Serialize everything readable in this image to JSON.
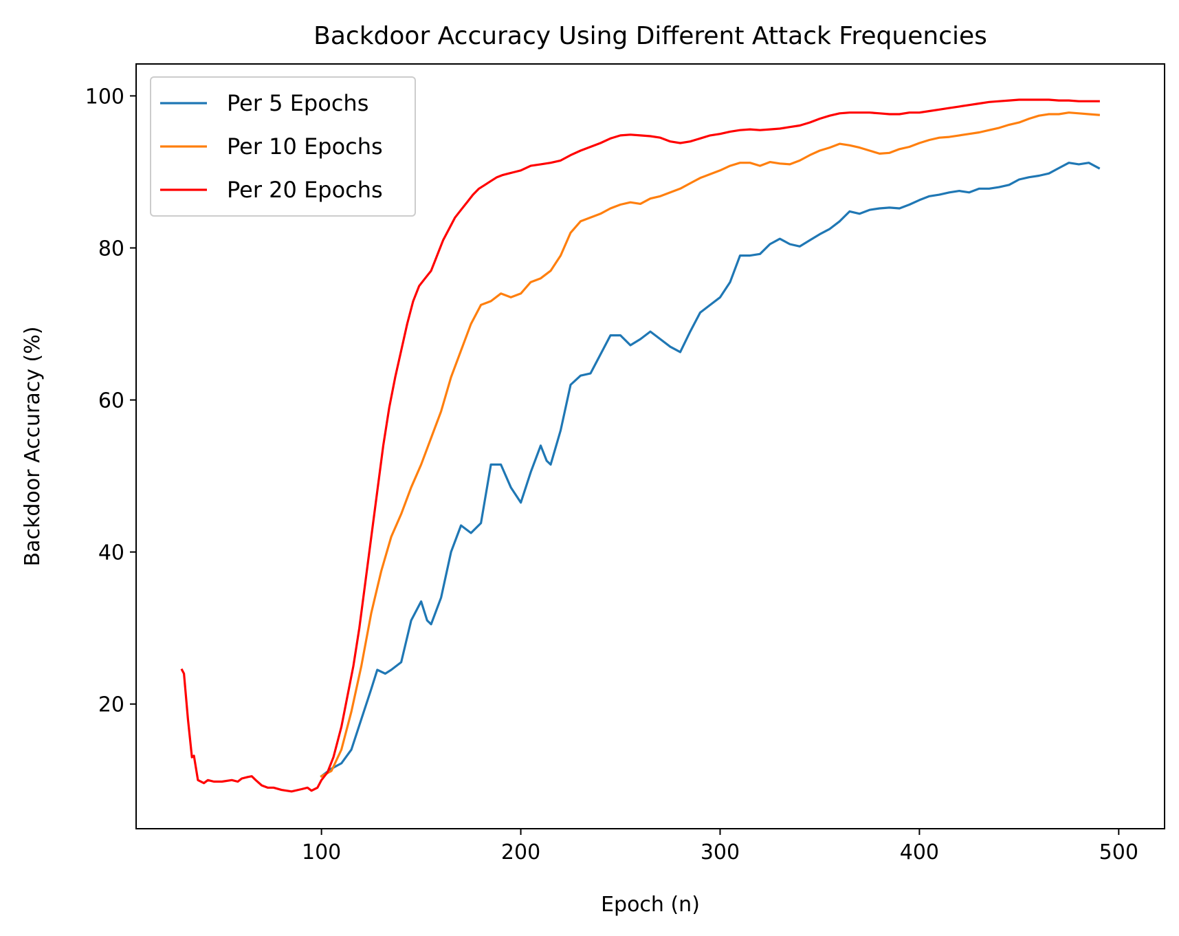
{
  "chart_data": {
    "type": "line",
    "title": "Backdoor Accuracy Using Different Attack Frequencies",
    "xlabel": "Epoch (n)",
    "ylabel": "Backdoor Accuracy (%)",
    "xlim": [
      7,
      523
    ],
    "ylim": [
      3.6,
      104.2
    ],
    "xticks": [
      100,
      200,
      300,
      400,
      500
    ],
    "yticks": [
      20,
      40,
      60,
      80,
      100
    ],
    "grid": false,
    "legend_position": "top-left",
    "series": [
      {
        "name": "Per 5 Epochs",
        "color": "#1f77b4",
        "points": [
          [
            100,
            10.5
          ],
          [
            105,
            11.5
          ],
          [
            110,
            12.2
          ],
          [
            115,
            14
          ],
          [
            120,
            18
          ],
          [
            125,
            22
          ],
          [
            128,
            24.5
          ],
          [
            132,
            24
          ],
          [
            135,
            24.5
          ],
          [
            140,
            25.5
          ],
          [
            145,
            31
          ],
          [
            150,
            33.5
          ],
          [
            153,
            31
          ],
          [
            155,
            30.5
          ],
          [
            160,
            34
          ],
          [
            165,
            40
          ],
          [
            170,
            43.5
          ],
          [
            175,
            42.5
          ],
          [
            180,
            43.8
          ],
          [
            185,
            51.5
          ],
          [
            190,
            51.5
          ],
          [
            195,
            48.5
          ],
          [
            200,
            46.5
          ],
          [
            205,
            50.5
          ],
          [
            210,
            54
          ],
          [
            213,
            52
          ],
          [
            215,
            51.5
          ],
          [
            220,
            56
          ],
          [
            225,
            62
          ],
          [
            230,
            63.2
          ],
          [
            235,
            63.5
          ],
          [
            240,
            66
          ],
          [
            245,
            68.5
          ],
          [
            250,
            68.5
          ],
          [
            255,
            67.2
          ],
          [
            260,
            68
          ],
          [
            265,
            69
          ],
          [
            270,
            68
          ],
          [
            275,
            67
          ],
          [
            280,
            66.3
          ],
          [
            285,
            69
          ],
          [
            290,
            71.5
          ],
          [
            295,
            72.5
          ],
          [
            300,
            73.5
          ],
          [
            305,
            75.5
          ],
          [
            310,
            79
          ],
          [
            315,
            79
          ],
          [
            320,
            79.2
          ],
          [
            325,
            80.5
          ],
          [
            330,
            81.2
          ],
          [
            335,
            80.5
          ],
          [
            340,
            80.2
          ],
          [
            345,
            81
          ],
          [
            350,
            81.8
          ],
          [
            355,
            82.5
          ],
          [
            360,
            83.5
          ],
          [
            365,
            84.8
          ],
          [
            370,
            84.5
          ],
          [
            375,
            85
          ],
          [
            380,
            85.2
          ],
          [
            385,
            85.3
          ],
          [
            390,
            85.2
          ],
          [
            395,
            85.7
          ],
          [
            400,
            86.3
          ],
          [
            405,
            86.8
          ],
          [
            410,
            87
          ],
          [
            415,
            87.3
          ],
          [
            420,
            87.5
          ],
          [
            425,
            87.3
          ],
          [
            430,
            87.8
          ],
          [
            435,
            87.8
          ],
          [
            440,
            88
          ],
          [
            445,
            88.3
          ],
          [
            450,
            89
          ],
          [
            455,
            89.3
          ],
          [
            460,
            89.5
          ],
          [
            465,
            89.8
          ],
          [
            470,
            90.5
          ],
          [
            475,
            91.2
          ],
          [
            480,
            91
          ],
          [
            485,
            91.2
          ],
          [
            490,
            90.5
          ]
        ]
      },
      {
        "name": "Per 10 Epochs",
        "color": "#ff7f0e",
        "points": [
          [
            100,
            10.5
          ],
          [
            105,
            11.2
          ],
          [
            110,
            14
          ],
          [
            115,
            19
          ],
          [
            120,
            25
          ],
          [
            125,
            32
          ],
          [
            130,
            37.5
          ],
          [
            135,
            42
          ],
          [
            140,
            45
          ],
          [
            145,
            48.5
          ],
          [
            150,
            51.5
          ],
          [
            155,
            55
          ],
          [
            160,
            58.5
          ],
          [
            165,
            63
          ],
          [
            170,
            66.5
          ],
          [
            175,
            70
          ],
          [
            180,
            72.5
          ],
          [
            185,
            73
          ],
          [
            190,
            74
          ],
          [
            195,
            73.5
          ],
          [
            200,
            74
          ],
          [
            205,
            75.5
          ],
          [
            210,
            76
          ],
          [
            215,
            77
          ],
          [
            220,
            79
          ],
          [
            225,
            82
          ],
          [
            230,
            83.5
          ],
          [
            235,
            84
          ],
          [
            240,
            84.5
          ],
          [
            245,
            85.2
          ],
          [
            250,
            85.7
          ],
          [
            255,
            86
          ],
          [
            260,
            85.8
          ],
          [
            265,
            86.5
          ],
          [
            270,
            86.8
          ],
          [
            275,
            87.3
          ],
          [
            280,
            87.8
          ],
          [
            285,
            88.5
          ],
          [
            290,
            89.2
          ],
          [
            295,
            89.7
          ],
          [
            300,
            90.2
          ],
          [
            305,
            90.8
          ],
          [
            310,
            91.2
          ],
          [
            315,
            91.2
          ],
          [
            320,
            90.8
          ],
          [
            325,
            91.3
          ],
          [
            330,
            91.1
          ],
          [
            335,
            91
          ],
          [
            340,
            91.5
          ],
          [
            345,
            92.2
          ],
          [
            350,
            92.8
          ],
          [
            355,
            93.2
          ],
          [
            360,
            93.7
          ],
          [
            365,
            93.5
          ],
          [
            370,
            93.2
          ],
          [
            375,
            92.8
          ],
          [
            380,
            92.4
          ],
          [
            385,
            92.5
          ],
          [
            390,
            93
          ],
          [
            395,
            93.3
          ],
          [
            400,
            93.8
          ],
          [
            405,
            94.2
          ],
          [
            410,
            94.5
          ],
          [
            415,
            94.6
          ],
          [
            420,
            94.8
          ],
          [
            425,
            95
          ],
          [
            430,
            95.2
          ],
          [
            435,
            95.5
          ],
          [
            440,
            95.8
          ],
          [
            445,
            96.2
          ],
          [
            450,
            96.5
          ],
          [
            455,
            97
          ],
          [
            460,
            97.4
          ],
          [
            465,
            97.6
          ],
          [
            470,
            97.6
          ],
          [
            475,
            97.8
          ],
          [
            480,
            97.7
          ],
          [
            485,
            97.6
          ],
          [
            490,
            97.5
          ]
        ]
      },
      {
        "name": "Per 20 Epochs",
        "color": "#ff0000",
        "points": [
          [
            30,
            24.5
          ],
          [
            31,
            24
          ],
          [
            33,
            18
          ],
          [
            35,
            13
          ],
          [
            36,
            13.2
          ],
          [
            38,
            10
          ],
          [
            41,
            9.6
          ],
          [
            43,
            10
          ],
          [
            46,
            9.8
          ],
          [
            50,
            9.8
          ],
          [
            55,
            10
          ],
          [
            58,
            9.8
          ],
          [
            60,
            10.2
          ],
          [
            63,
            10.4
          ],
          [
            65,
            10.5
          ],
          [
            67,
            10
          ],
          [
            70,
            9.3
          ],
          [
            73,
            9
          ],
          [
            76,
            9
          ],
          [
            80,
            8.7
          ],
          [
            85,
            8.5
          ],
          [
            90,
            8.8
          ],
          [
            93,
            9
          ],
          [
            95,
            8.6
          ],
          [
            98,
            9
          ],
          [
            100,
            10
          ],
          [
            103,
            11
          ],
          [
            106,
            13
          ],
          [
            110,
            17
          ],
          [
            113,
            21
          ],
          [
            116,
            25
          ],
          [
            119,
            30
          ],
          [
            122,
            36
          ],
          [
            125,
            42
          ],
          [
            128,
            48
          ],
          [
            131,
            54
          ],
          [
            134,
            59
          ],
          [
            137,
            63
          ],
          [
            140,
            66.5
          ],
          [
            143,
            70
          ],
          [
            146,
            73
          ],
          [
            149,
            75
          ],
          [
            152,
            76
          ],
          [
            155,
            77
          ],
          [
            158,
            79
          ],
          [
            161,
            81
          ],
          [
            164,
            82.5
          ],
          [
            167,
            84
          ],
          [
            170,
            85
          ],
          [
            173,
            86
          ],
          [
            176,
            87
          ],
          [
            179,
            87.8
          ],
          [
            182,
            88.3
          ],
          [
            185,
            88.8
          ],
          [
            188,
            89.3
          ],
          [
            191,
            89.6
          ],
          [
            194,
            89.8
          ],
          [
            197,
            90
          ],
          [
            200,
            90.2
          ],
          [
            205,
            90.8
          ],
          [
            210,
            91
          ],
          [
            215,
            91.2
          ],
          [
            220,
            91.5
          ],
          [
            225,
            92.2
          ],
          [
            230,
            92.8
          ],
          [
            235,
            93.3
          ],
          [
            240,
            93.8
          ],
          [
            245,
            94.4
          ],
          [
            250,
            94.8
          ],
          [
            255,
            94.9
          ],
          [
            260,
            94.8
          ],
          [
            265,
            94.7
          ],
          [
            270,
            94.5
          ],
          [
            275,
            94
          ],
          [
            280,
            93.8
          ],
          [
            285,
            94
          ],
          [
            290,
            94.4
          ],
          [
            295,
            94.8
          ],
          [
            300,
            95
          ],
          [
            305,
            95.3
          ],
          [
            310,
            95.5
          ],
          [
            315,
            95.6
          ],
          [
            320,
            95.5
          ],
          [
            325,
            95.6
          ],
          [
            330,
            95.7
          ],
          [
            335,
            95.9
          ],
          [
            340,
            96.1
          ],
          [
            345,
            96.5
          ],
          [
            350,
            97
          ],
          [
            355,
            97.4
          ],
          [
            360,
            97.7
          ],
          [
            365,
            97.8
          ],
          [
            370,
            97.8
          ],
          [
            375,
            97.8
          ],
          [
            380,
            97.7
          ],
          [
            385,
            97.6
          ],
          [
            390,
            97.6
          ],
          [
            395,
            97.8
          ],
          [
            400,
            97.8
          ],
          [
            405,
            98
          ],
          [
            410,
            98.2
          ],
          [
            415,
            98.4
          ],
          [
            420,
            98.6
          ],
          [
            425,
            98.8
          ],
          [
            430,
            99
          ],
          [
            435,
            99.2
          ],
          [
            440,
            99.3
          ],
          [
            445,
            99.4
          ],
          [
            450,
            99.5
          ],
          [
            455,
            99.5
          ],
          [
            460,
            99.5
          ],
          [
            465,
            99.5
          ],
          [
            470,
            99.4
          ],
          [
            475,
            99.4
          ],
          [
            480,
            99.3
          ],
          [
            485,
            99.3
          ],
          [
            490,
            99.3
          ]
        ]
      }
    ]
  }
}
